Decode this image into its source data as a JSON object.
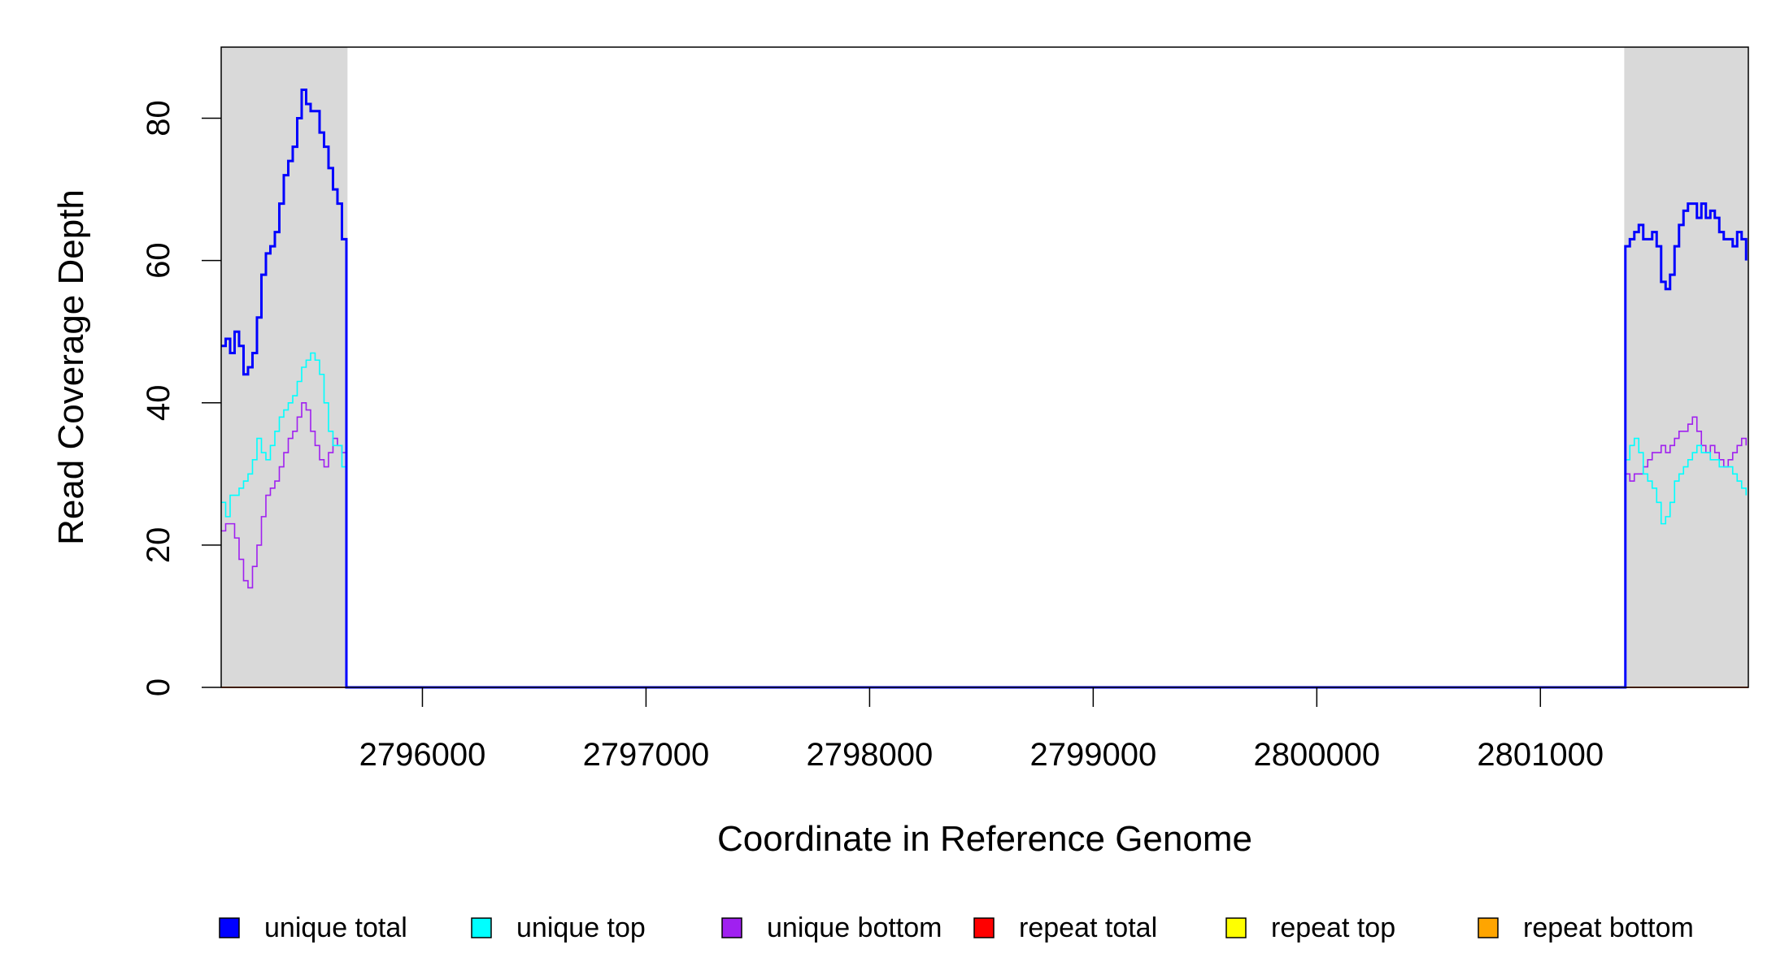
{
  "chart_data": {
    "type": "line",
    "title": "",
    "xlabel": "Coordinate in Reference Genome",
    "ylabel": "Read Coverage Depth",
    "xlim": [
      2795100,
      2801930
    ],
    "ylim": [
      0,
      90
    ],
    "xticks": [
      2796000,
      2797000,
      2798000,
      2799000,
      2800000,
      2801000
    ],
    "xtick_labels": [
      "2796000",
      "2797000",
      "2798000",
      "2799000",
      "2800000",
      "2801000"
    ],
    "yticks": [
      0,
      20,
      40,
      60,
      80
    ],
    "ytick_labels": [
      "0",
      "20",
      "40",
      "60",
      "80"
    ],
    "grid": false,
    "legend_position": "bottom",
    "shaded_regions": [
      {
        "x0": 2795100,
        "x1": 2795665,
        "color": "#d9d9d9"
      },
      {
        "x0": 2801375,
        "x1": 2801930,
        "color": "#d9d9d9"
      }
    ],
    "series": [
      {
        "name": "unique total",
        "color": "#0000ff",
        "width": 3,
        "x": [
          2795100,
          2795120,
          2795140,
          2795160,
          2795180,
          2795200,
          2795220,
          2795240,
          2795260,
          2795280,
          2795300,
          2795320,
          2795340,
          2795360,
          2795380,
          2795400,
          2795420,
          2795440,
          2795460,
          2795480,
          2795500,
          2795520,
          2795540,
          2795560,
          2795580,
          2795600,
          2795620,
          2795640,
          2795660,
          2795675,
          2801375,
          2801380,
          2801400,
          2801420,
          2801440,
          2801460,
          2801480,
          2801500,
          2801520,
          2801540,
          2801560,
          2801580,
          2801600,
          2801620,
          2801640,
          2801660,
          2801680,
          2801700,
          2801720,
          2801740,
          2801760,
          2801780,
          2801800,
          2801820,
          2801840,
          2801860,
          2801880,
          2801900,
          2801920
        ],
        "y": [
          48,
          49,
          47,
          50,
          48,
          44,
          45,
          47,
          52,
          58,
          61,
          62,
          64,
          68,
          72,
          74,
          76,
          80,
          84,
          82,
          81,
          81,
          78,
          76,
          73,
          70,
          68,
          63,
          0,
          0,
          0,
          62,
          63,
          64,
          65,
          63,
          63,
          64,
          62,
          57,
          56,
          58,
          62,
          65,
          67,
          68,
          68,
          66,
          68,
          66,
          67,
          66,
          64,
          63,
          63,
          62,
          64,
          63,
          60
        ]
      },
      {
        "name": "unique top",
        "color": "#00ffff",
        "width": 1.6,
        "x": [
          2795100,
          2795120,
          2795140,
          2795160,
          2795180,
          2795200,
          2795220,
          2795240,
          2795260,
          2795280,
          2795300,
          2795320,
          2795340,
          2795360,
          2795380,
          2795400,
          2795420,
          2795440,
          2795460,
          2795480,
          2795500,
          2795520,
          2795540,
          2795560,
          2795580,
          2795600,
          2795620,
          2795640,
          2795660,
          2795675,
          2801375,
          2801380,
          2801400,
          2801420,
          2801440,
          2801460,
          2801480,
          2801500,
          2801520,
          2801540,
          2801560,
          2801580,
          2801600,
          2801620,
          2801640,
          2801660,
          2801680,
          2801700,
          2801720,
          2801740,
          2801760,
          2801780,
          2801800,
          2801820,
          2801840,
          2801860,
          2801880,
          2801900,
          2801920
        ],
        "y": [
          26,
          24,
          27,
          27,
          28,
          29,
          30,
          32,
          35,
          33,
          32,
          34,
          36,
          38,
          39,
          40,
          41,
          43,
          45,
          46,
          47,
          46,
          44,
          40,
          36,
          34,
          34,
          31,
          0,
          0,
          0,
          32,
          34,
          35,
          33,
          30,
          29,
          28,
          26,
          23,
          24,
          26,
          29,
          30,
          31,
          32,
          33,
          34,
          33,
          33,
          32,
          32,
          31,
          31,
          31,
          30,
          29,
          28,
          27
        ]
      },
      {
        "name": "unique bottom",
        "color": "#a020f0",
        "width": 1.6,
        "x": [
          2795100,
          2795120,
          2795140,
          2795160,
          2795180,
          2795200,
          2795220,
          2795240,
          2795260,
          2795280,
          2795300,
          2795320,
          2795340,
          2795360,
          2795380,
          2795400,
          2795420,
          2795440,
          2795460,
          2795480,
          2795500,
          2795520,
          2795540,
          2795560,
          2795580,
          2795600,
          2795620,
          2795640,
          2795660,
          2795675,
          2801375,
          2801380,
          2801400,
          2801420,
          2801440,
          2801460,
          2801480,
          2801500,
          2801520,
          2801540,
          2801560,
          2801580,
          2801600,
          2801620,
          2801640,
          2801660,
          2801680,
          2801700,
          2801720,
          2801740,
          2801760,
          2801780,
          2801800,
          2801820,
          2801840,
          2801860,
          2801880,
          2801900,
          2801920
        ],
        "y": [
          22,
          23,
          23,
          21,
          18,
          15,
          14,
          17,
          20,
          24,
          27,
          28,
          29,
          31,
          33,
          35,
          36,
          38,
          40,
          39,
          36,
          34,
          32,
          31,
          33,
          35,
          34,
          33,
          0,
          0,
          0,
          30,
          29,
          30,
          30,
          31,
          32,
          33,
          33,
          34,
          33,
          34,
          35,
          36,
          36,
          37,
          38,
          36,
          34,
          33,
          34,
          33,
          32,
          31,
          32,
          33,
          34,
          35,
          34
        ]
      },
      {
        "name": "repeat total",
        "color": "#ff0000",
        "width": 1.6,
        "x": [
          2795100,
          2801930
        ],
        "y": [
          0,
          0
        ]
      },
      {
        "name": "repeat top",
        "color": "#ffff00",
        "width": 1.6,
        "x": [
          2795100,
          2801930
        ],
        "y": [
          0,
          0
        ]
      },
      {
        "name": "repeat bottom",
        "color": "#ffa500",
        "width": 1.6,
        "x": [
          2795100,
          2801930
        ],
        "y": [
          0,
          0
        ]
      }
    ],
    "legend": [
      {
        "label": "unique total",
        "color": "#0000ff"
      },
      {
        "label": "unique top",
        "color": "#00ffff"
      },
      {
        "label": "unique bottom",
        "color": "#a020f0"
      },
      {
        "label": "repeat total",
        "color": "#ff0000"
      },
      {
        "label": "repeat top",
        "color": "#ffff00"
      },
      {
        "label": "repeat bottom",
        "color": "#ffa500"
      }
    ]
  }
}
